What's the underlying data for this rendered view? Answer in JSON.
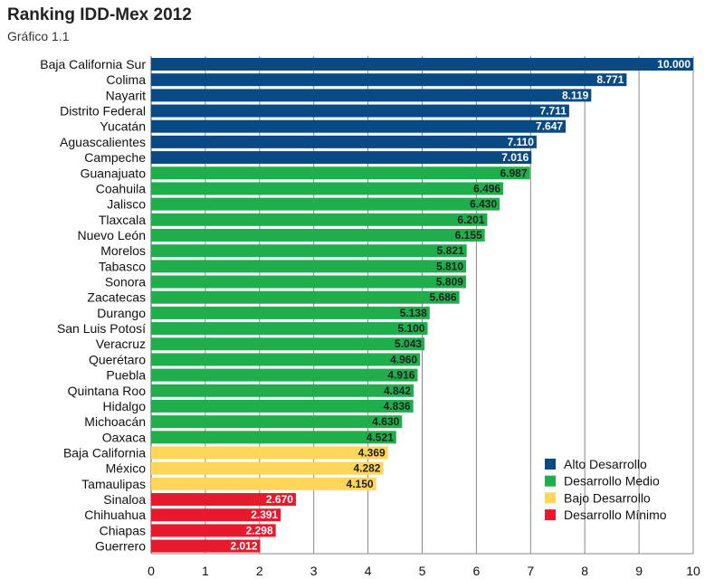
{
  "title": "Ranking IDD-Mex 2012",
  "subtitle": "Gráfico 1.1",
  "chart_data": {
    "type": "bar",
    "orientation": "horizontal",
    "xlim": [
      0,
      10
    ],
    "xticks": [
      0,
      1,
      2,
      3,
      4,
      5,
      6,
      7,
      8,
      9,
      10
    ],
    "grid": true,
    "legend_position": "bottom-right",
    "categories": [
      "Baja California Sur",
      "Colima",
      "Nayarit",
      "Distrito Federal",
      "Yucatán",
      "Aguascalientes",
      "Campeche",
      "Guanajuato",
      "Coahuila",
      "Jalisco",
      "Tlaxcala",
      "Nuevo León",
      "Morelos",
      "Tabasco",
      "Sonora",
      "Zacatecas",
      "Durango",
      "San Luis Potosí",
      "Veracruz",
      "Querétaro",
      "Puebla",
      "Quintana Roo",
      "Hidalgo",
      "Michoacán",
      "Oaxaca",
      "Baja California",
      "México",
      "Tamaulipas",
      "Sinaloa",
      "Chihuahua",
      "Chiapas",
      "Guerrero"
    ],
    "values": [
      10.0,
      8.771,
      8.119,
      7.711,
      7.647,
      7.11,
      7.016,
      6.987,
      6.496,
      6.43,
      6.201,
      6.155,
      5.821,
      5.81,
      5.809,
      5.686,
      5.138,
      5.1,
      5.043,
      4.96,
      4.916,
      4.842,
      4.836,
      4.63,
      4.521,
      4.369,
      4.282,
      4.15,
      2.67,
      2.391,
      2.298,
      2.012
    ],
    "value_labels": [
      "10.000",
      "8.771",
      "8.119",
      "7.711",
      "7.647",
      "7.110",
      "7.016",
      "6.987",
      "6.496",
      "6.430",
      "6.201",
      "6.155",
      "5.821",
      "5.810",
      "5.809",
      "5.686",
      "5.138",
      "5.100",
      "5.043",
      "4.960",
      "4.916",
      "4.842",
      "4.836",
      "4.630",
      "4.521",
      "4.369",
      "4.282",
      "4.150",
      "2.670",
      "2.391",
      "2.298",
      "2.012"
    ],
    "groups": [
      "alto",
      "alto",
      "alto",
      "alto",
      "alto",
      "alto",
      "alto",
      "medio",
      "medio",
      "medio",
      "medio",
      "medio",
      "medio",
      "medio",
      "medio",
      "medio",
      "medio",
      "medio",
      "medio",
      "medio",
      "medio",
      "medio",
      "medio",
      "medio",
      "medio",
      "bajo",
      "bajo",
      "bajo",
      "minimo",
      "minimo",
      "minimo",
      "minimo"
    ],
    "legend": [
      {
        "key": "alto",
        "label": "Alto Desarrollo",
        "color": "#0a4a84",
        "label_color": "#ffffff"
      },
      {
        "key": "medio",
        "label": "Desarrollo Medio",
        "color": "#1fae4b",
        "label_color": "#222222"
      },
      {
        "key": "bajo",
        "label": "Bajo Desarrollo",
        "color": "#ffd65a",
        "label_color": "#222222"
      },
      {
        "key": "minimo",
        "label": "Desarrollo Mínimo",
        "color": "#e8192c",
        "label_color": "#ffffff"
      }
    ]
  }
}
